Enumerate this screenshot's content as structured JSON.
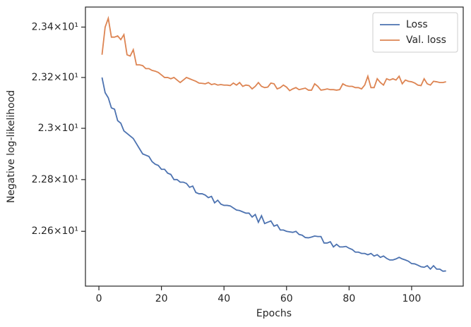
{
  "chart_data": {
    "type": "line",
    "xlabel": "Epochs",
    "ylabel": "Negative log-likelihood",
    "yscale": "log",
    "legend": "upper right",
    "grid": false,
    "xlim": [
      -4.3,
      116.5
    ],
    "xticks": [
      0,
      20,
      40,
      60,
      80,
      100
    ],
    "ylim": [
      22.39,
      23.48
    ],
    "yticks": [
      {
        "value": 22.6,
        "label": "2.26×10¹"
      },
      {
        "value": 22.8,
        "label": "2.28×10¹"
      },
      {
        "value": 23.0,
        "label": "2.3×10¹"
      },
      {
        "value": 23.2,
        "label": "2.32×10¹"
      },
      {
        "value": 23.4,
        "label": "2.34×10¹"
      }
    ],
    "x": [
      1,
      2,
      3,
      4,
      5,
      6,
      7,
      8,
      9,
      10,
      11,
      12,
      13,
      14,
      15,
      16,
      17,
      18,
      19,
      20,
      21,
      22,
      23,
      24,
      25,
      26,
      27,
      28,
      29,
      30,
      31,
      32,
      33,
      34,
      35,
      36,
      37,
      38,
      39,
      40,
      41,
      42,
      43,
      44,
      45,
      46,
      47,
      48,
      49,
      50,
      51,
      52,
      53,
      54,
      55,
      56,
      57,
      58,
      59,
      60,
      61,
      62,
      63,
      64,
      65,
      66,
      67,
      68,
      69,
      70,
      71,
      72,
      73,
      74,
      75,
      76,
      77,
      78,
      79,
      80,
      81,
      82,
      83,
      84,
      85,
      86,
      87,
      88,
      89,
      90,
      91,
      92,
      93,
      94,
      95,
      96,
      97,
      98,
      99,
      100,
      101,
      102,
      103,
      104,
      105,
      106,
      107,
      108,
      109,
      110,
      111
    ],
    "series": [
      {
        "name": "Loss",
        "color": "#4c72b0",
        "values": [
          23.2,
          23.14,
          23.12,
          23.08,
          23.075,
          23.03,
          23.02,
          22.99,
          22.98,
          22.97,
          22.96,
          22.94,
          22.92,
          22.9,
          22.895,
          22.89,
          22.87,
          22.86,
          22.855,
          22.84,
          22.84,
          22.825,
          22.82,
          22.8,
          22.8,
          22.79,
          22.79,
          22.785,
          22.77,
          22.775,
          22.75,
          22.745,
          22.745,
          22.74,
          22.73,
          22.735,
          22.71,
          22.72,
          22.705,
          22.7,
          22.7,
          22.698,
          22.69,
          22.682,
          22.68,
          22.675,
          22.67,
          22.67,
          22.655,
          22.665,
          22.635,
          22.66,
          22.63,
          22.635,
          22.64,
          22.62,
          22.625,
          22.605,
          22.605,
          22.6,
          22.598,
          22.596,
          22.6,
          22.588,
          22.585,
          22.576,
          22.575,
          22.578,
          22.582,
          22.58,
          22.58,
          22.555,
          22.555,
          22.56,
          22.54,
          22.55,
          22.54,
          22.54,
          22.542,
          22.535,
          22.53,
          22.52,
          22.52,
          22.515,
          22.515,
          22.51,
          22.515,
          22.505,
          22.51,
          22.5,
          22.505,
          22.496,
          22.49,
          22.49,
          22.494,
          22.5,
          22.494,
          22.49,
          22.485,
          22.476,
          22.475,
          22.47,
          22.464,
          22.462,
          22.468,
          22.455,
          22.468,
          22.455,
          22.455,
          22.447,
          22.448
        ]
      },
      {
        "name": "Val. loss",
        "color": "#dd8452",
        "values": [
          23.29,
          23.4,
          23.435,
          23.36,
          23.36,
          23.365,
          23.35,
          23.37,
          23.29,
          23.285,
          23.31,
          23.25,
          23.25,
          23.247,
          23.235,
          23.235,
          23.228,
          23.225,
          23.22,
          23.21,
          23.2,
          23.2,
          23.195,
          23.2,
          23.19,
          23.18,
          23.19,
          23.2,
          23.195,
          23.19,
          23.185,
          23.178,
          23.177,
          23.175,
          23.18,
          23.172,
          23.175,
          23.17,
          23.172,
          23.17,
          23.17,
          23.168,
          23.178,
          23.17,
          23.18,
          23.165,
          23.17,
          23.168,
          23.155,
          23.165,
          23.18,
          23.165,
          23.16,
          23.162,
          23.178,
          23.175,
          23.155,
          23.16,
          23.17,
          23.162,
          23.148,
          23.155,
          23.16,
          23.152,
          23.155,
          23.158,
          23.15,
          23.15,
          23.175,
          23.165,
          23.15,
          23.152,
          23.155,
          23.152,
          23.152,
          23.15,
          23.152,
          23.175,
          23.168,
          23.165,
          23.165,
          23.16,
          23.16,
          23.155,
          23.17,
          23.205,
          23.16,
          23.16,
          23.195,
          23.18,
          23.17,
          23.195,
          23.19,
          23.195,
          23.19,
          23.205,
          23.175,
          23.19,
          23.185,
          23.183,
          23.178,
          23.17,
          23.168,
          23.195,
          23.175,
          23.17,
          23.185,
          23.183,
          23.18,
          23.18,
          23.183
        ]
      }
    ]
  }
}
